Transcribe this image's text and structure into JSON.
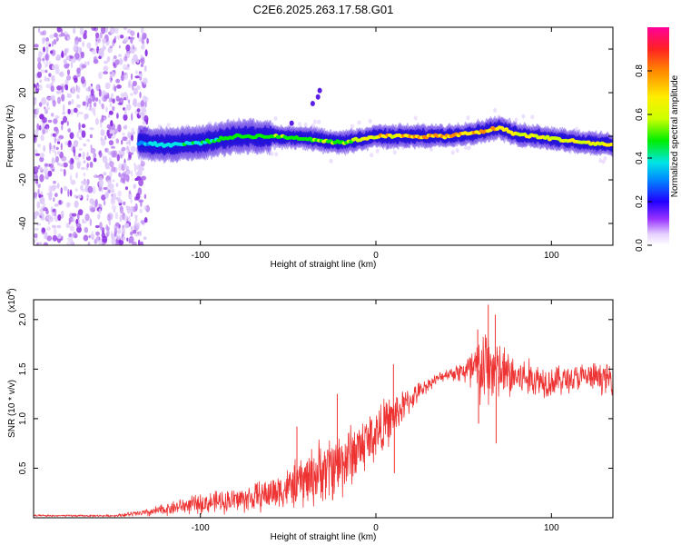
{
  "title": "C2E6.2025.263.17.58.G01",
  "chart_data": [
    {
      "type": "heatmap",
      "xlabel": "Height of straight line (km)",
      "ylabel": "Frequency (Hz)",
      "xlim": [
        -195,
        135
      ],
      "ylim": [
        -50,
        50
      ],
      "xticks": [
        -100,
        0,
        100
      ],
      "xtick_labels": [
        "-100",
        "0",
        "100"
      ],
      "yticks": [
        -40,
        -20,
        0,
        20,
        40
      ],
      "ytick_labels": [
        "-40",
        "-20",
        "0",
        "20",
        "40"
      ],
      "colorbar": {
        "label": "Normalized spectral amplitude",
        "range": [
          0,
          1
        ],
        "ticks": [
          0.0,
          0.2,
          0.4,
          0.6,
          0.8
        ],
        "tick_labels": [
          "0.0",
          "0.2",
          "0.4",
          "0.6",
          "0.8"
        ],
        "colors": [
          "#ffffff",
          "#e6d2ff",
          "#9933ff",
          "#2200ff",
          "#0088ff",
          "#00e5e5",
          "#00ee00",
          "#ccff00",
          "#ffee00",
          "#ff8800",
          "#ff2222",
          "#ff0099"
        ]
      },
      "ridge": {
        "x": [
          -135,
          -120,
          -100,
          -80,
          -60,
          -40,
          -20,
          0,
          20,
          40,
          60,
          70,
          80,
          100,
          120,
          135
        ],
        "freq": [
          -3,
          -4,
          -3,
          0,
          0,
          -1,
          -3,
          0,
          0,
          0,
          2,
          4,
          1,
          -1,
          -3,
          -4
        ],
        "amplitude": [
          0.15,
          0.3,
          0.35,
          0.42,
          0.45,
          0.45,
          0.5,
          0.78,
          0.82,
          0.85,
          0.78,
          0.8,
          0.7,
          0.65,
          0.68,
          0.7
        ]
      },
      "noise_region": {
        "x_from": -195,
        "x_to": -130,
        "amplitude": 0.12
      }
    },
    {
      "type": "line",
      "xlabel": "Height of straight line (km)",
      "ylabel": "SNR (10 * v/v)",
      "multiplier_label": "(x10",
      "multiplier_exp": "4",
      "xlim": [
        -195,
        135
      ],
      "ylim": [
        0,
        2.2
      ],
      "xticks": [
        -100,
        0,
        100
      ],
      "xtick_labels": [
        "-100",
        "0",
        "100"
      ],
      "yticks": [
        0.5,
        1.0,
        1.5,
        2.0
      ],
      "ytick_labels": [
        "0.5",
        "1.0",
        "1.5",
        "2.0"
      ],
      "series": [
        {
          "name": "SNR",
          "color": "#ee3333",
          "envelope_x": [
            -195,
            -150,
            -130,
            -110,
            -90,
            -70,
            -50,
            -40,
            -30,
            -20,
            -10,
            0,
            10,
            20,
            30,
            40,
            50,
            55,
            60,
            65,
            70,
            80,
            90,
            100,
            110,
            120,
            135
          ],
          "mean": [
            0.02,
            0.02,
            0.05,
            0.12,
            0.16,
            0.2,
            0.3,
            0.38,
            0.48,
            0.55,
            0.7,
            0.85,
            1.02,
            1.2,
            1.35,
            1.45,
            1.48,
            1.46,
            1.5,
            1.52,
            1.47,
            1.42,
            1.4,
            1.38,
            1.4,
            1.42,
            1.4
          ],
          "spread": [
            0.01,
            0.01,
            0.04,
            0.08,
            0.11,
            0.14,
            0.2,
            0.28,
            0.32,
            0.35,
            0.3,
            0.28,
            0.22,
            0.12,
            0.06,
            0.05,
            0.12,
            0.3,
            0.4,
            0.42,
            0.3,
            0.22,
            0.18,
            0.16,
            0.14,
            0.14,
            0.15
          ],
          "peaks": [
            {
              "x": -45,
              "y": 0.92
            },
            {
              "x": -22,
              "y": 1.25
            },
            {
              "x": 10,
              "y": 1.55
            },
            {
              "x": 10.5,
              "y": 0.45
            },
            {
              "x": 58,
              "y": 1.9
            },
            {
              "x": 64,
              "y": 2.15
            },
            {
              "x": 68,
              "y": 2.05
            },
            {
              "x": 68.5,
              "y": 0.75
            },
            {
              "x": 58.5,
              "y": 0.95
            }
          ]
        }
      ]
    }
  ]
}
